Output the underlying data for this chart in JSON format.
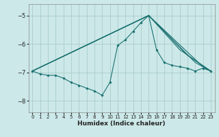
{
  "xlabel": "Humidex (Indice chaleur)",
  "bg_color": "#cce8e8",
  "grid_color": "#aacccc",
  "line_color": "#1a7070",
  "xlim": [
    -0.5,
    23.5
  ],
  "ylim": [
    -8.4,
    -4.6
  ],
  "yticks": [
    -8,
    -7,
    -6,
    -5
  ],
  "xticks": [
    0,
    1,
    2,
    3,
    4,
    5,
    6,
    7,
    8,
    9,
    10,
    11,
    12,
    13,
    14,
    15,
    16,
    17,
    18,
    19,
    20,
    21,
    22,
    23
  ],
  "lines": [
    {
      "x": [
        0,
        1,
        2,
        3,
        4,
        5,
        6,
        7,
        8,
        9,
        10,
        11,
        12,
        13,
        14,
        15,
        16,
        17,
        18,
        19,
        20,
        21,
        22,
        23
      ],
      "y": [
        -6.95,
        -7.05,
        -7.1,
        -7.1,
        -7.2,
        -7.35,
        -7.45,
        -7.55,
        -7.65,
        -7.8,
        -7.35,
        -6.05,
        -5.85,
        -5.55,
        -5.25,
        -5.0,
        -6.2,
        -6.65,
        -6.75,
        -6.8,
        -6.85,
        -6.95,
        -6.85,
        -6.95
      ],
      "marker": true
    },
    {
      "x": [
        0,
        15,
        22,
        23
      ],
      "y": [
        -6.95,
        -5.0,
        -6.8,
        -6.95
      ],
      "marker": false
    },
    {
      "x": [
        0,
        15,
        21,
        23
      ],
      "y": [
        -6.95,
        -5.0,
        -6.65,
        -6.95
      ],
      "marker": false
    },
    {
      "x": [
        0,
        15,
        20,
        23
      ],
      "y": [
        -6.95,
        -5.0,
        -6.4,
        -6.95
      ],
      "marker": false
    },
    {
      "x": [
        0,
        15,
        19,
        23
      ],
      "y": [
        -6.95,
        -5.0,
        -6.2,
        -6.95
      ],
      "marker": false
    }
  ]
}
